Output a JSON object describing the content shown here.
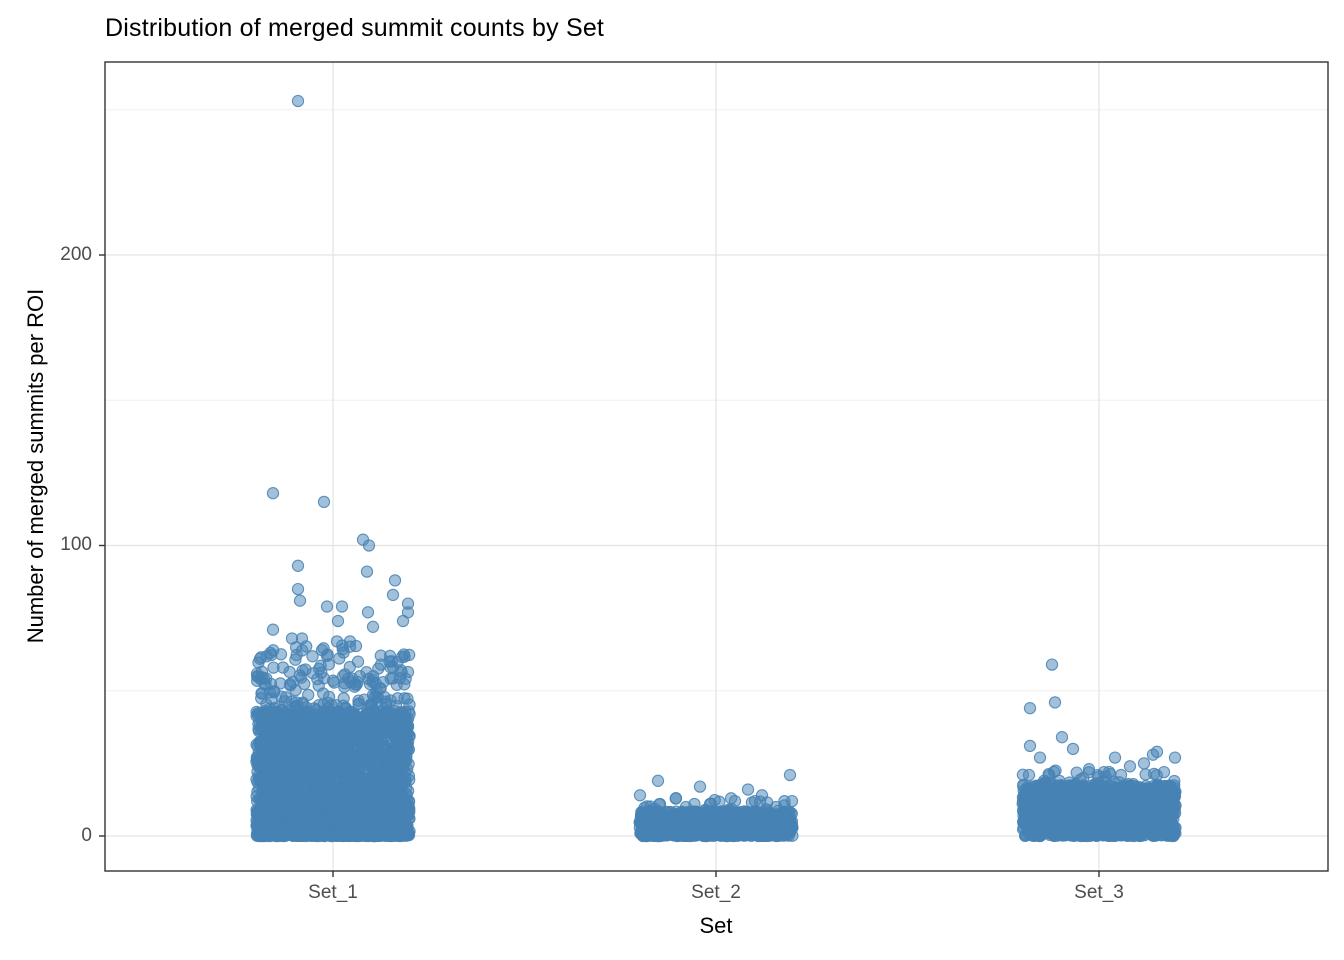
{
  "chart_data": {
    "type": "scatter",
    "subtype": "jittered-strip-plot",
    "title": "Distribution of merged summit counts by Set",
    "xlabel": "Set",
    "ylabel": "Number of merged summits per ROI",
    "categories": [
      "Set_1",
      "Set_2",
      "Set_3"
    ],
    "ylim": [
      -12,
      266
    ],
    "yticks": [
      0,
      100,
      200
    ],
    "yminor": [
      50,
      150,
      250
    ],
    "grid": "horizontal major+minor light gray; vertical major gridline at each category; white panel; dark panel border",
    "legend": "none",
    "point_style": {
      "color": "#4682B4",
      "alpha": 0.5,
      "rim_alpha": 0.85,
      "radius_px": 5.6
    },
    "jitter_width_units": 0.4,
    "max_value": 253,
    "clusters": [
      {
        "category": "Set_1",
        "seed": 11,
        "description": "very dense core 0-43 (thousands of ROIs), medium scatter 43-66, sparse points 55-120, single extreme outlier at 253",
        "layers": [
          {
            "count": 2400,
            "vmin": 0,
            "vmax": 43,
            "skew": 1.7
          },
          {
            "count": 320,
            "vmin": 0,
            "vmax": 9,
            "skew": 1.0
          },
          {
            "count": 150,
            "vmin": 40,
            "vmax": 55,
            "skew": 1.6
          },
          {
            "count": 70,
            "vmin": 52,
            "vmax": 66,
            "skew": 1.6
          }
        ],
        "points": [
          [
            -35,
            253
          ],
          [
            -60,
            118
          ],
          [
            -9,
            115
          ],
          [
            30,
            102
          ],
          [
            36,
            100
          ],
          [
            -35,
            93
          ],
          [
            34,
            91
          ],
          [
            62,
            88
          ],
          [
            -35,
            85
          ],
          [
            60,
            83
          ],
          [
            -33,
            81
          ],
          [
            75,
            80
          ],
          [
            -6,
            79
          ],
          [
            9,
            79
          ],
          [
            35,
            77
          ],
          [
            75,
            77
          ],
          [
            5,
            74
          ],
          [
            70,
            74
          ],
          [
            40,
            72
          ],
          [
            -60,
            71
          ],
          [
            -41,
            68
          ],
          [
            -31,
            68
          ],
          [
            4,
            67
          ],
          [
            17,
            67
          ],
          [
            -11,
            64
          ],
          [
            -6,
            62
          ],
          [
            57,
            62
          ],
          [
            -73,
            61
          ],
          [
            25,
            60
          ],
          [
            48,
            59
          ],
          [
            -50,
            58
          ],
          [
            68,
            57
          ],
          [
            -20,
            56
          ],
          [
            10,
            55
          ]
        ]
      },
      {
        "category": "Set_2",
        "seed": 22,
        "description": "dense low core 0-8, scattered points up to ~21",
        "layers": [
          {
            "count": 950,
            "vmin": 0,
            "vmax": 8.5,
            "skew": 1.4
          },
          {
            "count": 40,
            "vmin": 8,
            "vmax": 13,
            "skew": 1.8
          }
        ],
        "points": [
          [
            74,
            21
          ],
          [
            -58,
            19
          ],
          [
            -16,
            17
          ],
          [
            32,
            16
          ],
          [
            -76,
            14
          ],
          [
            46,
            14
          ],
          [
            -40,
            13
          ],
          [
            19,
            12
          ],
          [
            76,
            12
          ],
          [
            -56,
            11
          ],
          [
            -6,
            11
          ],
          [
            60,
            10
          ],
          [
            -30,
            10
          ]
        ]
      },
      {
        "category": "Set_3",
        "seed": 33,
        "description": "dense core 0-18, scatter 18-34, outliers at 44, 46, 59",
        "layers": [
          {
            "count": 1250,
            "vmin": 0,
            "vmax": 17.5,
            "skew": 1.35
          },
          {
            "count": 60,
            "vmin": 16,
            "vmax": 23,
            "skew": 1.7
          }
        ],
        "points": [
          [
            -47,
            59
          ],
          [
            -44,
            46
          ],
          [
            -69,
            44
          ],
          [
            -37,
            34
          ],
          [
            -69,
            31
          ],
          [
            -26,
            30
          ],
          [
            58,
            29
          ],
          [
            54,
            28
          ],
          [
            16,
            27
          ],
          [
            -59,
            27
          ],
          [
            76,
            27
          ],
          [
            45,
            25
          ],
          [
            31,
            24
          ],
          [
            -10,
            23
          ],
          [
            5,
            22
          ],
          [
            65,
            22
          ],
          [
            -70,
            21
          ],
          [
            22,
            21
          ]
        ]
      }
    ],
    "colors": {
      "point": "#4682B4",
      "grid_major": "#E3E3E3",
      "grid_minor": "#F0F0F0",
      "panel_border": "#333333",
      "tick": "#333333",
      "tick_label": "#4d4d4d",
      "text": "#000000",
      "background": "#ffffff"
    }
  }
}
